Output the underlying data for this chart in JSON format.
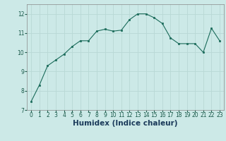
{
  "x": [
    0,
    1,
    2,
    3,
    4,
    5,
    6,
    7,
    8,
    9,
    10,
    11,
    12,
    13,
    14,
    15,
    16,
    17,
    18,
    19,
    20,
    21,
    22,
    23
  ],
  "y": [
    7.45,
    8.3,
    9.3,
    9.6,
    9.9,
    10.3,
    10.6,
    10.6,
    11.1,
    11.2,
    11.1,
    11.15,
    11.7,
    12.0,
    12.0,
    11.8,
    11.5,
    10.75,
    10.45,
    10.45,
    10.45,
    10.0,
    11.25,
    10.6
  ],
  "xlabel": "Humidex (Indice chaleur)",
  "xlim": [
    -0.5,
    23.5
  ],
  "ylim": [
    7,
    12.5
  ],
  "yticks": [
    7,
    8,
    9,
    10,
    11,
    12
  ],
  "xticks": [
    0,
    1,
    2,
    3,
    4,
    5,
    6,
    7,
    8,
    9,
    10,
    11,
    12,
    13,
    14,
    15,
    16,
    17,
    18,
    19,
    20,
    21,
    22,
    23
  ],
  "bg_color": "#cce9e7",
  "line_color": "#1a6b5a",
  "marker_color": "#1a6b5a",
  "grid_color": "#b8d8d5",
  "tick_color": "#1a5a4a",
  "xlabel_color": "#1a3a5a",
  "tick_fontsize": 5.5,
  "xlabel_fontsize": 7.5
}
